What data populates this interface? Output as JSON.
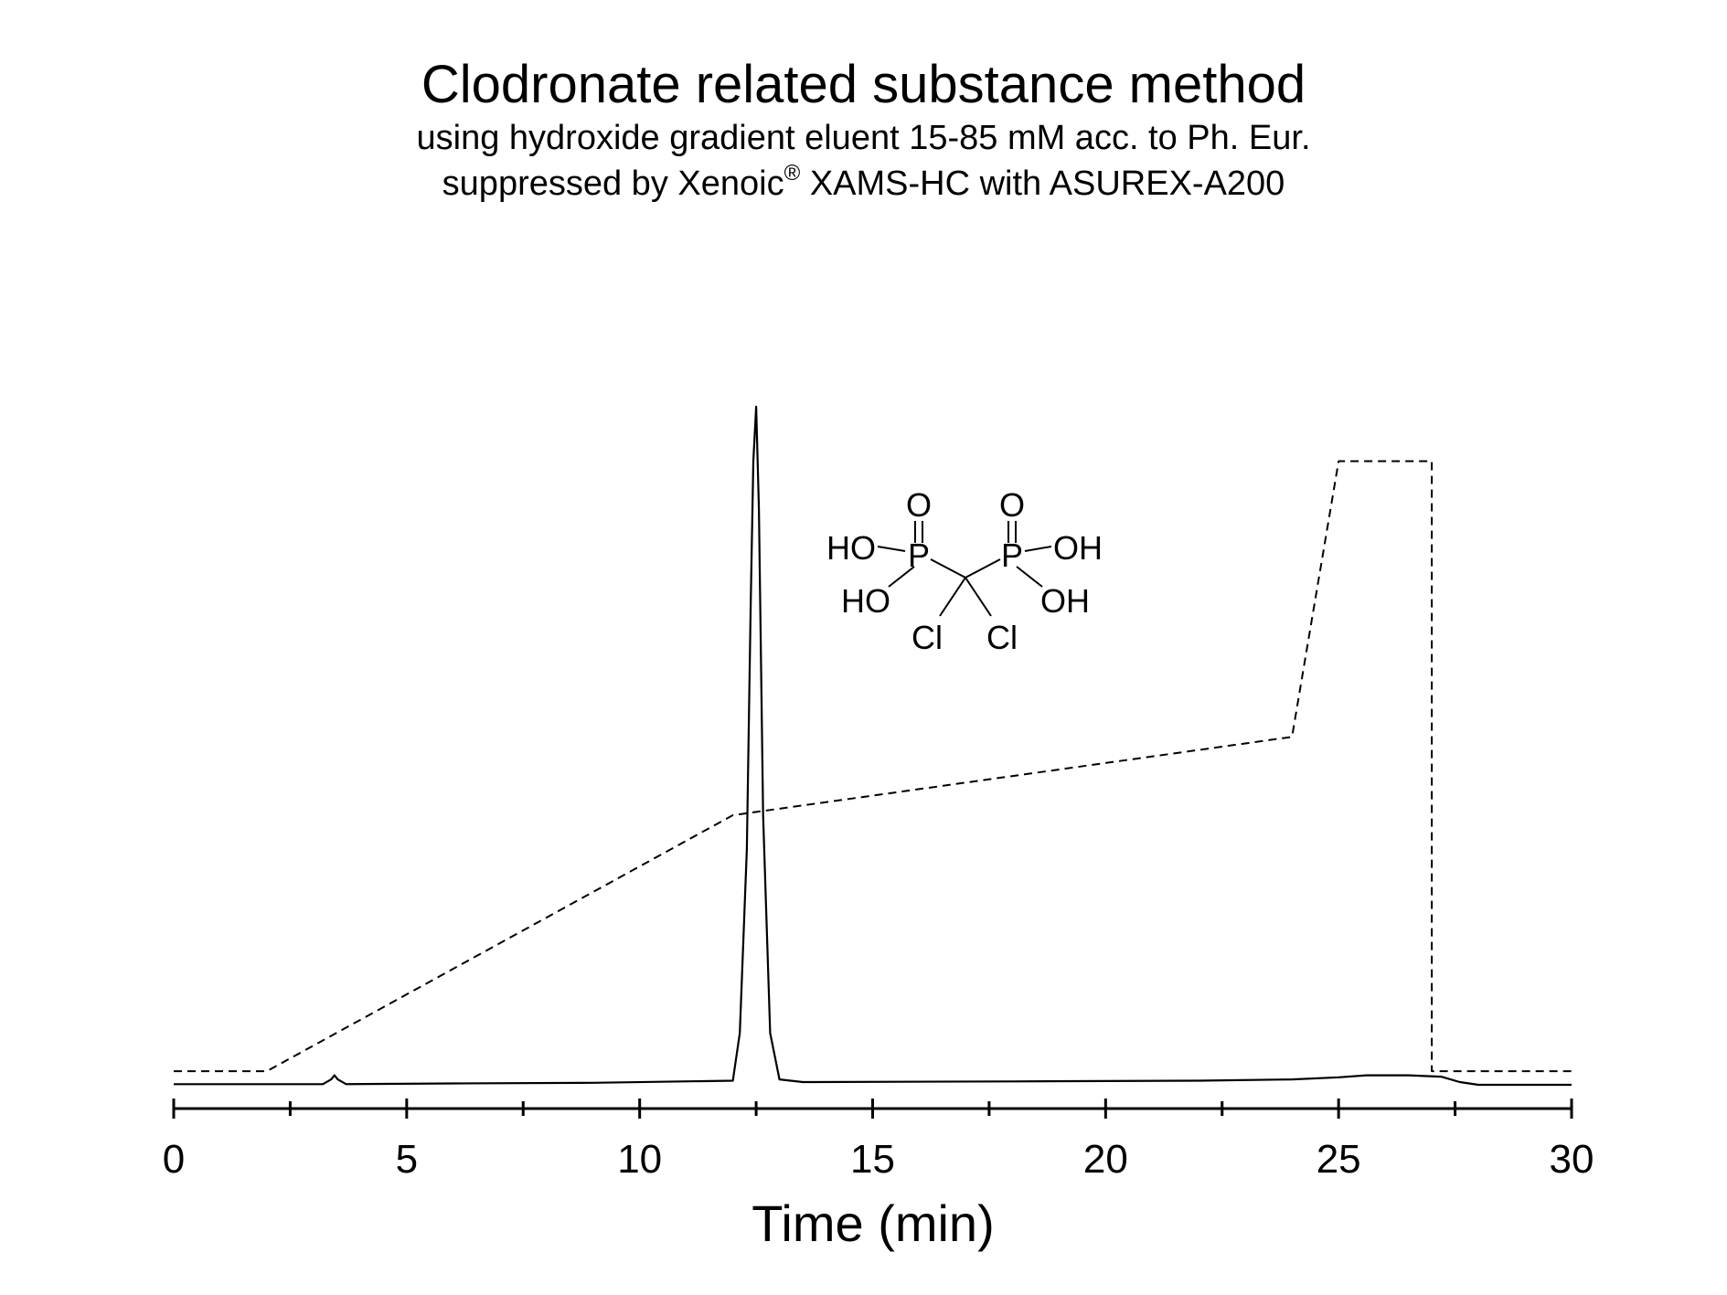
{
  "chart_data": {
    "type": "line",
    "title": "Clodronate related substance method",
    "subtitle_line1": "using hydroxide gradient eluent 15-85 mM acc. to Ph. Eur.",
    "subtitle_line2_before": "suppressed by Xenoic",
    "subtitle_line2_sup": "®",
    "subtitle_line2_after": " XAMS-HC with ASUREX-A200",
    "xlabel": "Time (min)",
    "xlim": [
      0,
      30
    ],
    "ylim": [
      0,
      100
    ],
    "x_ticks_major": [
      0,
      5,
      10,
      15,
      20,
      25,
      30
    ],
    "x_tick_labels": [
      "0",
      "5",
      "10",
      "15",
      "20",
      "25",
      "30"
    ],
    "x_ticks_minor": [
      2.5,
      7.5,
      12.5,
      17.5,
      22.5,
      27.5
    ],
    "y_axis_shown": false,
    "grid": false,
    "series": [
      {
        "style": "solid",
        "x": [
          0,
          3.2,
          3.38,
          3.45,
          3.52,
          3.7,
          6,
          9,
          12.0,
          12.15,
          12.3,
          12.38,
          12.44,
          12.5,
          12.56,
          12.65,
          12.8,
          13.0,
          13.5,
          18,
          22,
          24,
          25,
          25.6,
          26.5,
          27.2,
          27.6,
          28.0,
          30
        ],
        "y": [
          0.5,
          0.5,
          1.2,
          1.8,
          1.2,
          0.5,
          0.6,
          0.7,
          1.0,
          8,
          35,
          70,
          92,
          100,
          85,
          40,
          8,
          1.2,
          0.8,
          0.9,
          1.0,
          1.2,
          1.5,
          1.8,
          1.8,
          1.6,
          0.8,
          0.4,
          0.4
        ]
      },
      {
        "style": "dashed",
        "x": [
          0,
          2,
          12,
          24,
          25,
          27,
          27,
          30
        ],
        "y": [
          2.4,
          2.4,
          40,
          51.5,
          92,
          92,
          2.4,
          2.4
        ]
      }
    ],
    "annotations": {
      "structure_labels": [
        "O",
        "O",
        "HO",
        "P",
        "P",
        "OH",
        "HO",
        "OH",
        "Cl",
        "Cl"
      ]
    }
  }
}
